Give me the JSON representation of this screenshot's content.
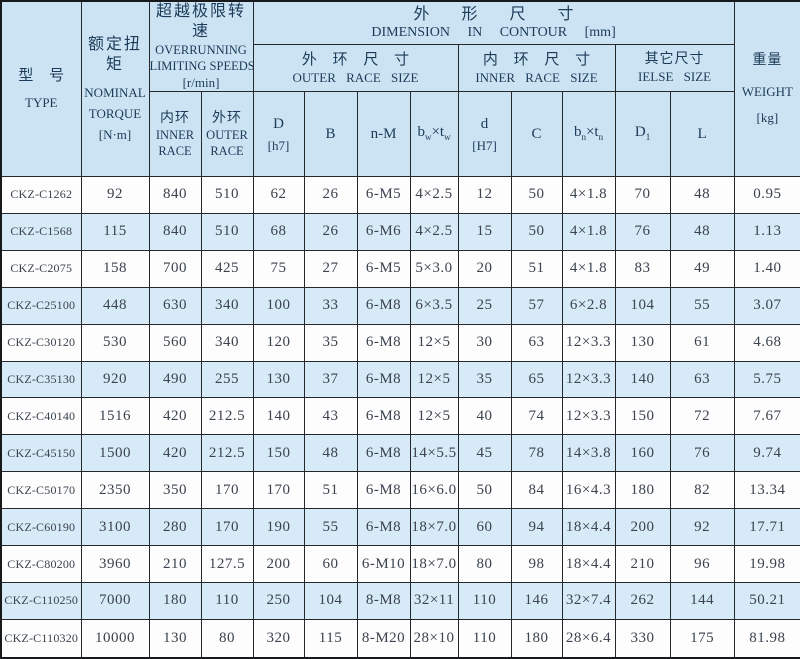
{
  "colors": {
    "header_bg": "#cbe3f2",
    "row_alt_bg": "#d7eaf7",
    "row_bg": "#fdfdfd",
    "grid_line": "#26282b",
    "header_text": "#1c3b58",
    "cell_text": "#3a434e"
  },
  "table": {
    "header": {
      "type": {
        "zh": "型 号",
        "en": "TYPE"
      },
      "torque": {
        "zh": "额定扭矩",
        "en_line1": "NOMINAL",
        "en_line2": "TORQUE",
        "unit": "[N·m]"
      },
      "speeds": {
        "zh": "超越极限转速",
        "en_line1": "OVERRUNNING",
        "en_line2": "LIMITING SPEEDS",
        "unit": "[r/min]"
      },
      "speed_inner": {
        "zh": "内环",
        "en_line1": "INNER",
        "en_line2": "RACE"
      },
      "speed_outer": {
        "zh": "外环",
        "en_line1": "OUTER",
        "en_line2": "RACE"
      },
      "dimension": {
        "zh": "外 形 尺 寸",
        "en": "DIMENSION IN CONTOUR [mm]"
      },
      "outer_race_size": {
        "zh": "外 环 尺 寸",
        "en": "OUTER RACE SIZE"
      },
      "inner_race_size": {
        "zh": "内 环 尺 寸",
        "en": "INNER RACE SIZE"
      },
      "other_size": {
        "zh": "其它尺寸",
        "en": "IELSE SIZE"
      },
      "weight": {
        "zh": "重量",
        "en": "WEIGHT",
        "unit": "[kg]"
      },
      "cols": {
        "D": {
          "symbol": "D",
          "tolerance": "[h7]"
        },
        "B": {
          "symbol": "B"
        },
        "nM": {
          "symbol": "n-M"
        },
        "bwtw": {
          "base1": "b",
          "sub1": "w",
          "times": "×",
          "base2": "t",
          "sub2": "w"
        },
        "d": {
          "symbol": "d",
          "tolerance": "[H7]"
        },
        "C": {
          "symbol": "C"
        },
        "bntn": {
          "base1": "b",
          "sub1": "n",
          "times": "×",
          "base2": "t",
          "sub2": "n"
        },
        "D1": {
          "base": "D",
          "sub": "1"
        },
        "L": {
          "symbol": "L"
        }
      }
    },
    "col_keys": [
      "type",
      "nominal-torque",
      "speed-inner-race",
      "speed-outer-race",
      "D",
      "B",
      "n-M",
      "bw-tw",
      "d",
      "C",
      "bn-tn",
      "D1",
      "L",
      "weight"
    ],
    "rows": [
      [
        "CKZ-C1262",
        "92",
        "840",
        "510",
        "62",
        "26",
        "6-M5",
        "4×2.5",
        "12",
        "50",
        "4×1.8",
        "70",
        "48",
        "0.95"
      ],
      [
        "CKZ-C1568",
        "115",
        "840",
        "510",
        "68",
        "26",
        "6-M6",
        "4×2.5",
        "15",
        "50",
        "4×1.8",
        "76",
        "48",
        "1.13"
      ],
      [
        "CKZ-C2075",
        "158",
        "700",
        "425",
        "75",
        "27",
        "6-M5",
        "5×3.0",
        "20",
        "51",
        "4×1.8",
        "83",
        "49",
        "1.40"
      ],
      [
        "CKZ-C25100",
        "448",
        "630",
        "340",
        "100",
        "33",
        "6-M8",
        "6×3.5",
        "25",
        "57",
        "6×2.8",
        "104",
        "55",
        "3.07"
      ],
      [
        "CKZ-C30120",
        "530",
        "560",
        "340",
        "120",
        "35",
        "6-M8",
        "12×5",
        "30",
        "63",
        "12×3.3",
        "130",
        "61",
        "4.68"
      ],
      [
        "CKZ-C35130",
        "920",
        "490",
        "255",
        "130",
        "37",
        "6-M8",
        "12×5",
        "35",
        "65",
        "12×3.3",
        "140",
        "63",
        "5.75"
      ],
      [
        "CKZ-C40140",
        "1516",
        "420",
        "212.5",
        "140",
        "43",
        "6-M8",
        "12×5",
        "40",
        "74",
        "12×3.3",
        "150",
        "72",
        "7.67"
      ],
      [
        "CKZ-C45150",
        "1500",
        "420",
        "212.5",
        "150",
        "48",
        "6-M8",
        "14×5.5",
        "45",
        "78",
        "14×3.8",
        "160",
        "76",
        "9.74"
      ],
      [
        "CKZ-C50170",
        "2350",
        "350",
        "170",
        "170",
        "51",
        "6-M8",
        "16×6.0",
        "50",
        "84",
        "16×4.3",
        "180",
        "82",
        "13.34"
      ],
      [
        "CKZ-C60190",
        "3100",
        "280",
        "170",
        "190",
        "55",
        "6-M8",
        "18×7.0",
        "60",
        "94",
        "18×4.4",
        "200",
        "92",
        "17.71"
      ],
      [
        "CKZ-C80200",
        "3960",
        "210",
        "127.5",
        "200",
        "60",
        "6-M10",
        "18×7.0",
        "80",
        "98",
        "18×4.4",
        "210",
        "96",
        "19.98"
      ],
      [
        "CKZ-C110250",
        "7000",
        "180",
        "110",
        "250",
        "104",
        "8-M8",
        "32×11",
        "110",
        "146",
        "32×7.4",
        "262",
        "144",
        "50.21"
      ],
      [
        "CKZ-C110320",
        "10000",
        "130",
        "80",
        "320",
        "115",
        "8-M20",
        "28×10",
        "110",
        "180",
        "28×6.4",
        "330",
        "175",
        "81.98"
      ]
    ]
  }
}
